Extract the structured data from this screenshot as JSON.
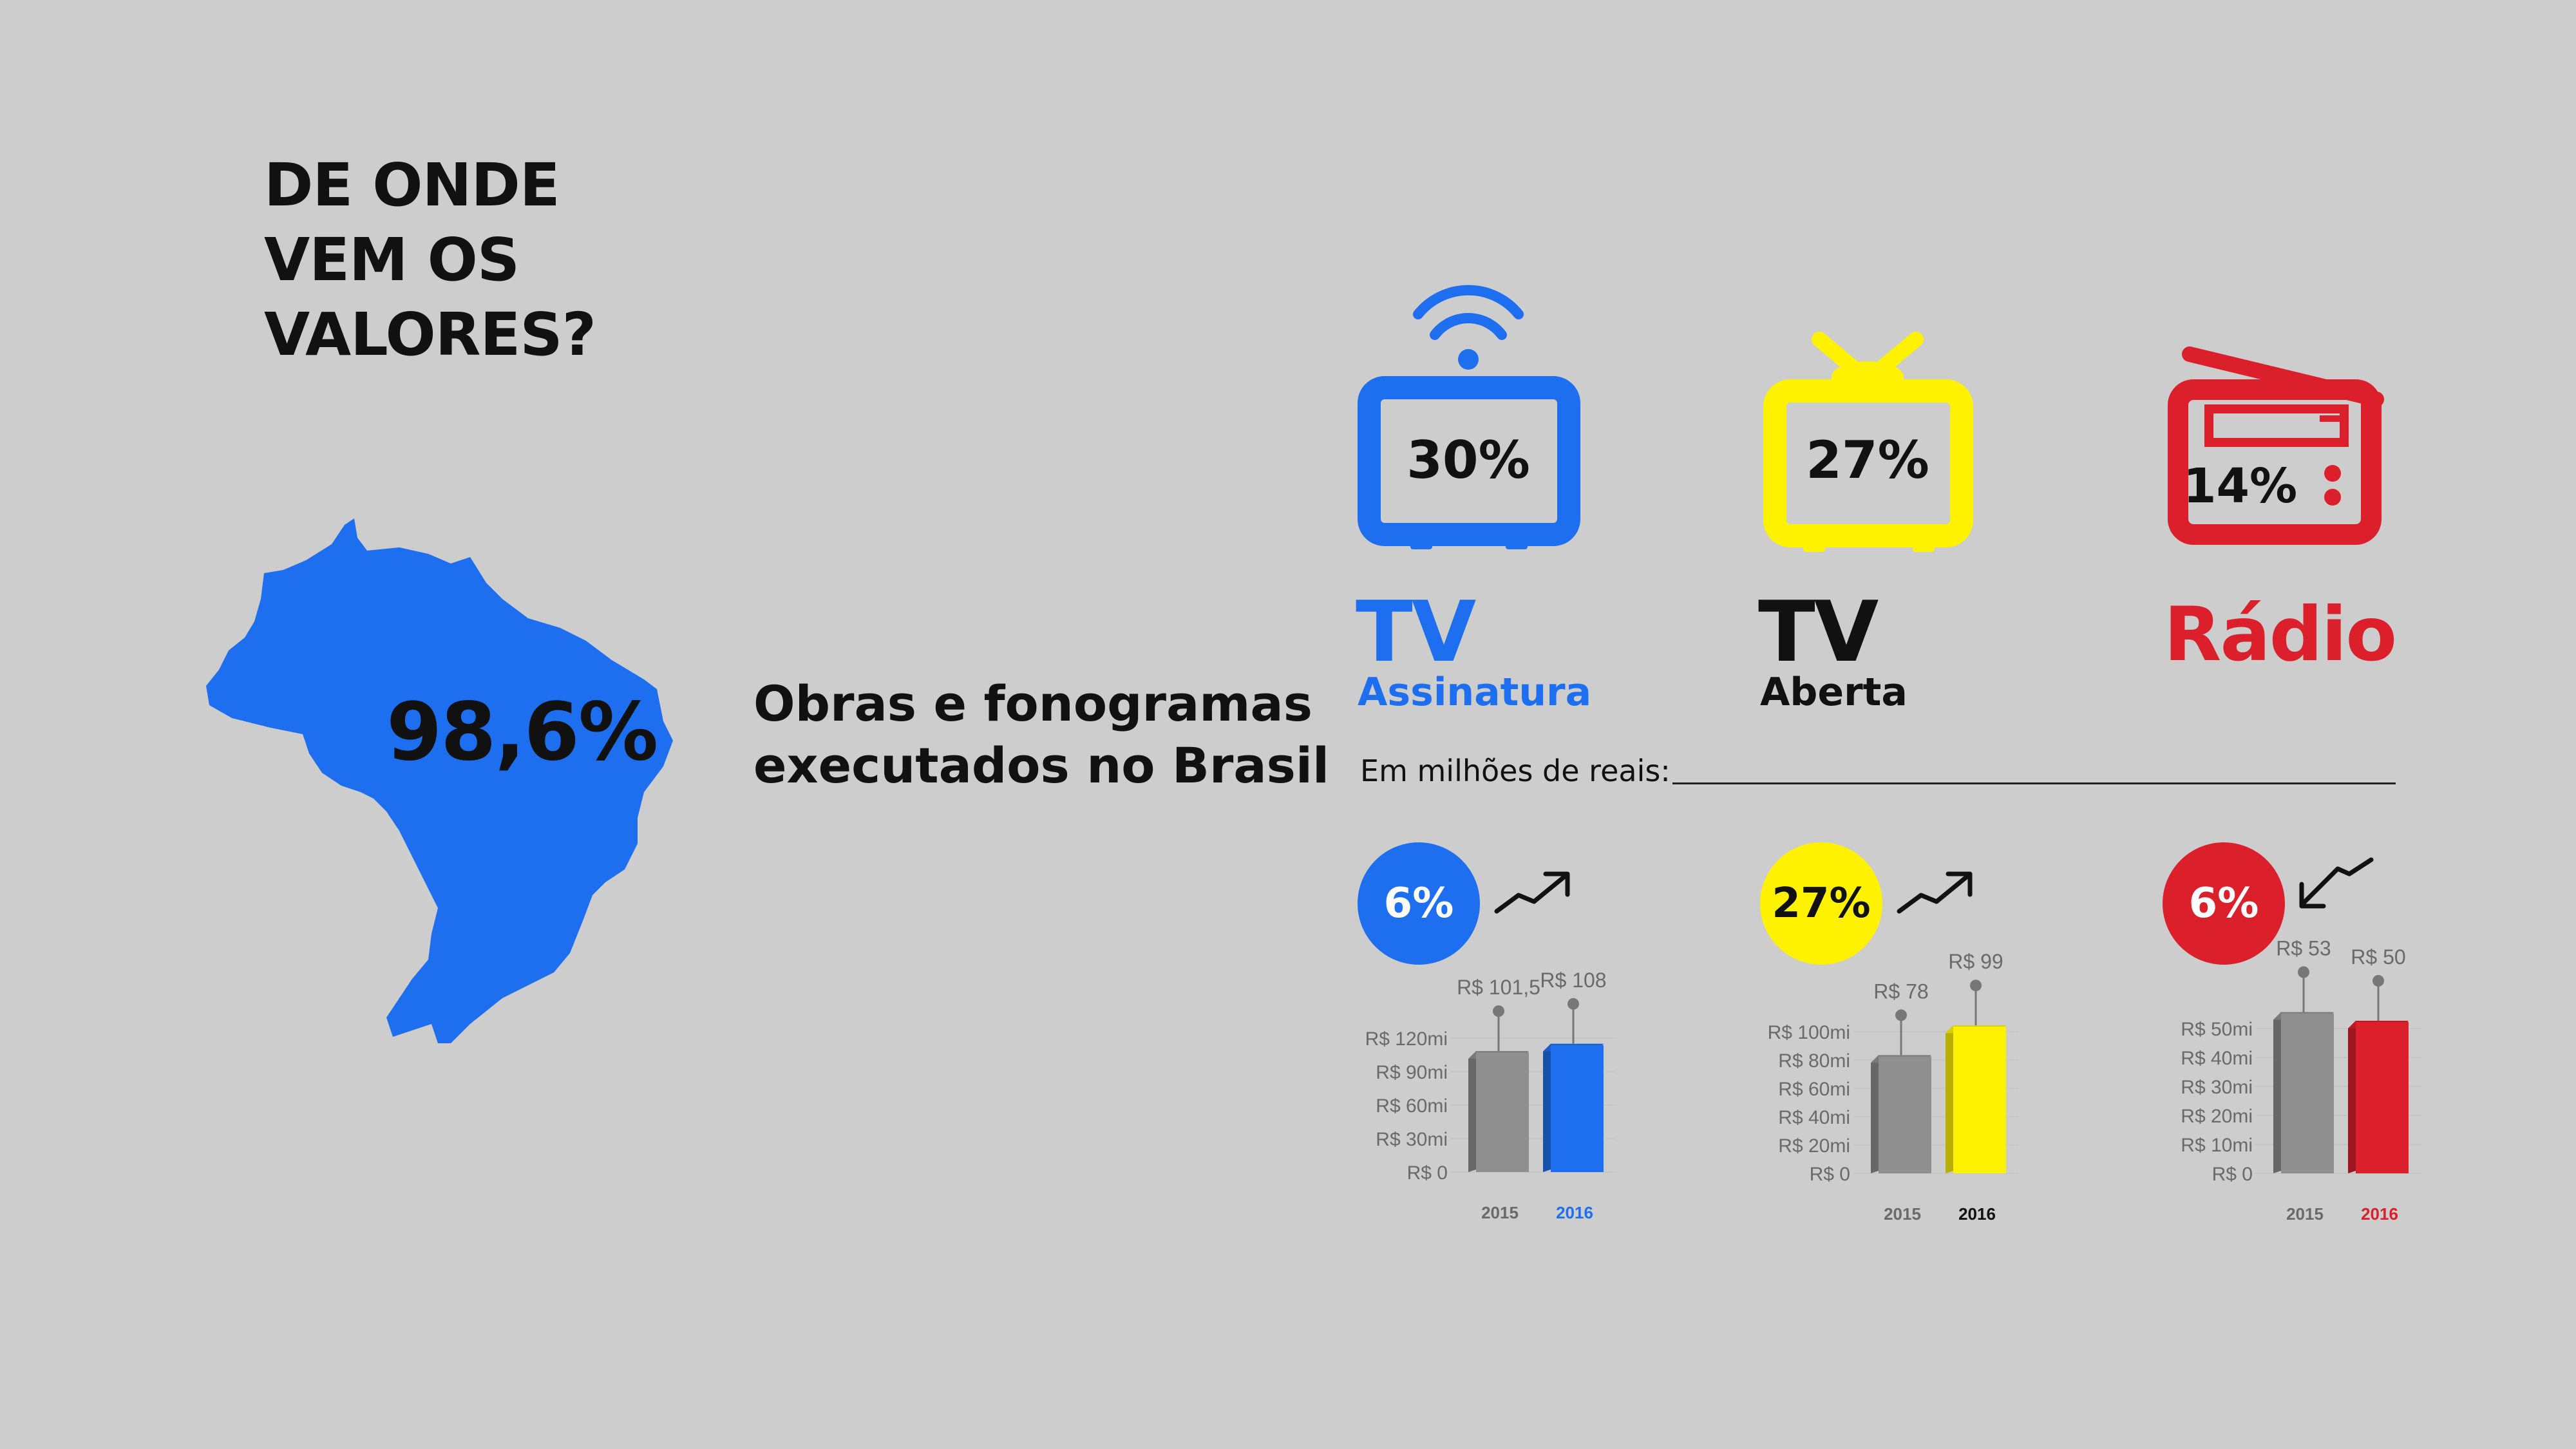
{
  "title_lines": [
    "DE ONDE",
    "VEM OS",
    "VALORES?"
  ],
  "map": {
    "percent": "98,6%",
    "description_lines": [
      "Obras e fonogramas",
      "executados no Brasil"
    ],
    "color": "#1d6ff0"
  },
  "categories": [
    {
      "percent": "30%",
      "name": "TV",
      "subname": "Assinatura",
      "color": "#1d6ff0",
      "icon": "wifi-tv-icon",
      "change": "6%",
      "trend": "up"
    },
    {
      "percent": "27%",
      "name": "TV",
      "subname": "Aberta",
      "color": "#fff200",
      "icon": "antenna-tv-icon",
      "change": "27%",
      "trend": "up"
    },
    {
      "percent": "14%",
      "name": "Rádio",
      "subname": "",
      "color": "#db1f2b",
      "icon": "radio-icon",
      "change": "6%",
      "trend": "down"
    }
  ],
  "unit_label": "Em milhões de reais:",
  "chart_data": [
    {
      "type": "bar",
      "title": "TV Assinatura",
      "categories": [
        "2015",
        "2016"
      ],
      "values": [
        101.5,
        108
      ],
      "value_labels": [
        "R$ 101,5",
        "R$ 108"
      ],
      "ytick_labels": [
        "R$ 0",
        "R$ 30mi",
        "R$ 60mi",
        "R$ 90mi",
        "R$ 120mi"
      ],
      "ylim": [
        0,
        120
      ],
      "colors": [
        "#8f8f8f",
        "#1d6ff0"
      ]
    },
    {
      "type": "bar",
      "title": "TV Aberta",
      "categories": [
        "2015",
        "2016"
      ],
      "values": [
        78,
        99
      ],
      "value_labels": [
        "R$ 78",
        "R$ 99"
      ],
      "ytick_labels": [
        "R$ 0",
        "R$ 20mi",
        "R$ 40mi",
        "R$ 60mi",
        "R$ 80mi",
        "R$ 100mi"
      ],
      "ylim": [
        0,
        100
      ],
      "colors": [
        "#8f8f8f",
        "#fff200"
      ]
    },
    {
      "type": "bar",
      "title": "Rádio",
      "categories": [
        "2015",
        "2016"
      ],
      "values": [
        53,
        50
      ],
      "value_labels": [
        "R$ 53",
        "R$ 50"
      ],
      "ytick_labels": [
        "R$ 0",
        "R$ 10mi",
        "R$ 20mi",
        "R$ 30mi",
        "R$ 40mi",
        "R$ 50mi"
      ],
      "ylim": [
        0,
        50
      ],
      "colors": [
        "#8f8f8f",
        "#db1f2b"
      ]
    }
  ]
}
